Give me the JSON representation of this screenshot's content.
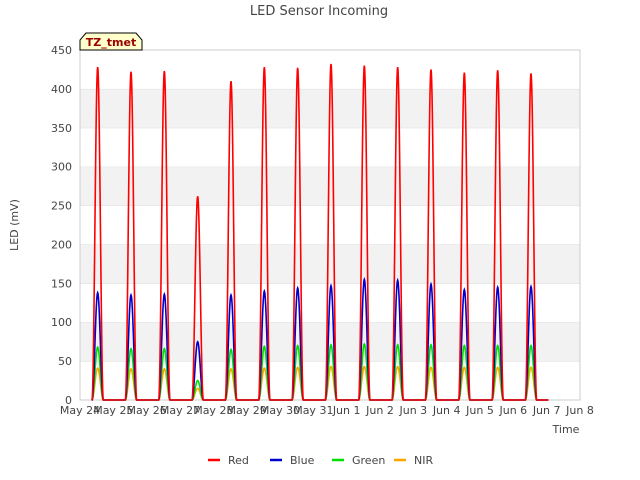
{
  "chart_data": {
    "type": "line",
    "title": "LED Sensor Incoming",
    "xlabel": "Time",
    "ylabel": "LED (mV)",
    "ylim": [
      0,
      450
    ],
    "yticks": [
      0,
      50,
      100,
      150,
      200,
      250,
      300,
      350,
      400,
      450
    ],
    "xlim": [
      0,
      15
    ],
    "xticks": [
      "May 24",
      "May 25",
      "May 26",
      "May 27",
      "May 28",
      "May 29",
      "May 30",
      "May 31",
      "Jun 1",
      "Jun 2",
      "Jun 3",
      "Jun 4",
      "Jun 5",
      "Jun 6",
      "Jun 7",
      "Jun 8"
    ],
    "annotation": "TZ_tmet",
    "grid": "horizontal bands",
    "legend_position": "bottom",
    "day_peak_offset": 0.53,
    "series": [
      {
        "name": "Red",
        "color": "#ff0000",
        "peaks": [
          428,
          422,
          423,
          262,
          410,
          428,
          427,
          432,
          430,
          428,
          425,
          421,
          424,
          420
        ]
      },
      {
        "name": "Blue",
        "color": "#0000cc",
        "peaks": [
          138,
          135,
          136,
          75,
          135,
          140,
          144,
          147,
          155,
          154,
          149,
          142,
          145,
          146
        ]
      },
      {
        "name": "Green",
        "color": "#00dd00",
        "peaks": [
          68,
          66,
          66,
          25,
          65,
          69,
          70,
          71,
          72,
          71,
          71,
          70,
          70,
          70
        ]
      },
      {
        "name": "NIR",
        "color": "#ffa500",
        "peaks": [
          41,
          40,
          40,
          15,
          40,
          41,
          42,
          43,
          43,
          43,
          42,
          42,
          42,
          42
        ]
      }
    ]
  }
}
